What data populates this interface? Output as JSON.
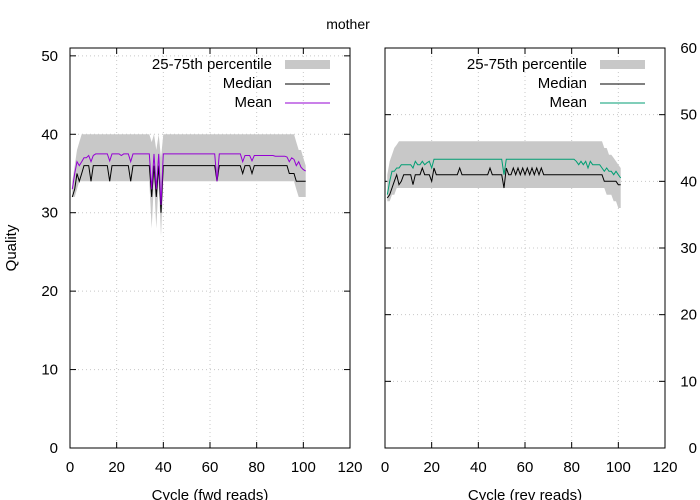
{
  "title": "mother",
  "chart_data": [
    {
      "type": "area",
      "panel": "left",
      "xlabel": "Cycle (fwd reads)",
      "ylabel": "Quality",
      "xlim": [
        0,
        120
      ],
      "ylim": [
        0,
        51
      ],
      "xticks": [
        "0",
        "20",
        "40",
        "60",
        "80",
        "100",
        "120"
      ],
      "yticks": [
        "0",
        "10",
        "20",
        "30",
        "40",
        "50"
      ],
      "grid": true,
      "legend_position": "top-right",
      "legend": [
        {
          "label": "25-75th percentile",
          "color": "#c8c8c8"
        },
        {
          "label": "Median",
          "color": "#000000"
        },
        {
          "label": "Mean",
          "color": "#9400d3"
        }
      ],
      "x": [
        1,
        2,
        3,
        4,
        5,
        6,
        7,
        8,
        9,
        10,
        11,
        12,
        13,
        14,
        15,
        16,
        17,
        18,
        19,
        20,
        21,
        22,
        23,
        24,
        25,
        26,
        27,
        28,
        29,
        30,
        31,
        32,
        33,
        34,
        35,
        36,
        37,
        38,
        39,
        40,
        41,
        42,
        43,
        44,
        45,
        46,
        47,
        48,
        49,
        50,
        51,
        52,
        53,
        54,
        55,
        56,
        57,
        58,
        59,
        60,
        61,
        62,
        63,
        64,
        65,
        66,
        67,
        68,
        69,
        70,
        71,
        72,
        73,
        74,
        75,
        76,
        77,
        78,
        79,
        80,
        81,
        82,
        83,
        84,
        85,
        86,
        87,
        88,
        89,
        90,
        91,
        92,
        93,
        94,
        95,
        96,
        97,
        98,
        99,
        100,
        101
      ],
      "series": [
        {
          "name": "25-75th percentile",
          "kind": "band",
          "low": [
            32,
            32,
            33,
            34,
            34,
            34,
            34,
            34,
            34,
            34,
            34,
            34,
            34,
            34,
            34,
            34,
            34,
            34,
            34,
            34,
            34,
            34,
            34,
            34,
            34,
            34,
            34,
            34,
            34,
            34,
            34,
            34,
            34,
            34,
            28,
            34,
            28,
            34,
            27,
            34,
            34,
            34,
            34,
            34,
            34,
            34,
            34,
            34,
            34,
            34,
            34,
            34,
            34,
            34,
            34,
            34,
            34,
            34,
            34,
            34,
            34,
            34,
            34,
            34,
            34,
            34,
            34,
            34,
            34,
            34,
            34,
            34,
            34,
            34,
            34,
            34,
            34,
            34,
            34,
            34,
            34,
            34,
            34,
            34,
            34,
            34,
            34,
            34,
            34,
            34,
            34,
            34,
            34,
            34,
            34,
            34,
            33,
            32,
            32,
            32,
            32
          ],
          "high": [
            34,
            36,
            38,
            39,
            40,
            40,
            40,
            40,
            40,
            40,
            40,
            40,
            40,
            40,
            40,
            40,
            40,
            40,
            40,
            40,
            40,
            40,
            40,
            40,
            40,
            40,
            40,
            40,
            40,
            40,
            40,
            40,
            40,
            40,
            39,
            40,
            38,
            40,
            37,
            40,
            40,
            40,
            40,
            40,
            40,
            40,
            40,
            40,
            40,
            40,
            40,
            40,
            40,
            40,
            40,
            40,
            40,
            40,
            40,
            40,
            40,
            40,
            40,
            40,
            40,
            40,
            40,
            40,
            40,
            40,
            40,
            40,
            40,
            40,
            40,
            40,
            40,
            40,
            40,
            40,
            40,
            40,
            40,
            40,
            40,
            40,
            40,
            40,
            40,
            40,
            40,
            40,
            40,
            40,
            40,
            40,
            39,
            38,
            38,
            37,
            36
          ]
        },
        {
          "name": "Median",
          "kind": "line",
          "values": [
            32,
            33,
            35,
            34,
            35,
            36,
            36,
            36,
            34,
            36,
            36,
            36,
            36,
            36,
            36,
            36,
            34,
            36,
            36,
            36,
            36,
            36,
            36,
            36,
            36,
            34,
            36,
            36,
            36,
            36,
            36,
            36,
            36,
            36,
            32,
            36,
            32,
            36,
            30,
            36,
            36,
            36,
            36,
            36,
            36,
            36,
            36,
            36,
            36,
            36,
            36,
            36,
            36,
            36,
            36,
            36,
            36,
            36,
            36,
            36,
            36,
            36,
            34,
            36,
            36,
            36,
            36,
            36,
            36,
            36,
            36,
            36,
            36,
            35,
            36,
            36,
            36,
            35,
            36,
            36,
            36,
            36,
            36,
            36,
            36,
            36,
            36,
            36,
            36,
            36,
            36,
            36,
            36,
            35,
            35,
            35,
            34,
            34,
            34,
            34,
            34
          ]
        },
        {
          "name": "Mean",
          "kind": "line",
          "values": [
            33,
            35,
            36.5,
            36,
            36.5,
            37,
            37,
            37.3,
            36.5,
            37.3,
            37.5,
            37.5,
            37.5,
            37.5,
            37.5,
            37.5,
            36.6,
            37.5,
            37.5,
            37.5,
            37.5,
            37.3,
            37.5,
            37.5,
            37.5,
            36.5,
            37.5,
            37.5,
            37.5,
            37.5,
            37.5,
            37.5,
            37.5,
            37.5,
            33,
            37.5,
            33,
            37.5,
            31,
            37.5,
            37.5,
            37.5,
            37.5,
            37.5,
            37.5,
            37.5,
            37.5,
            37.5,
            37.5,
            37.5,
            37.5,
            37.5,
            37.5,
            37.5,
            37.5,
            37.5,
            37.5,
            37.5,
            37.5,
            37.5,
            37.5,
            37.5,
            34,
            37.5,
            37.5,
            37.5,
            37.5,
            37.5,
            37.5,
            37.5,
            37.5,
            37.5,
            37.5,
            36.5,
            37.3,
            37.3,
            37.3,
            36.6,
            37.3,
            37.3,
            37.3,
            37.3,
            37.3,
            37.3,
            37.3,
            37.3,
            37.3,
            37.2,
            37.2,
            37.2,
            37.2,
            37.2,
            37.1,
            36.5,
            37,
            36.8,
            36,
            36.5,
            35.8,
            35.5,
            35.3
          ]
        }
      ]
    },
    {
      "type": "area",
      "panel": "right",
      "xlabel": "Cycle (rev reads)",
      "xlim": [
        0,
        120
      ],
      "ylim": [
        0,
        60
      ],
      "xticks": [
        "0",
        "20",
        "40",
        "60",
        "80",
        "100",
        "120"
      ],
      "yticks": [
        "0",
        "10",
        "20",
        "30",
        "40",
        "50",
        "60"
      ],
      "grid": true,
      "legend_position": "top-right",
      "legend": [
        {
          "label": "25-75th percentile",
          "color": "#c8c8c8"
        },
        {
          "label": "Median",
          "color": "#000000"
        },
        {
          "label": "Mean",
          "color": "#009e73"
        }
      ],
      "x": [
        1,
        2,
        3,
        4,
        5,
        6,
        7,
        8,
        9,
        10,
        11,
        12,
        13,
        14,
        15,
        16,
        17,
        18,
        19,
        20,
        21,
        22,
        23,
        24,
        25,
        26,
        27,
        28,
        29,
        30,
        31,
        32,
        33,
        34,
        35,
        36,
        37,
        38,
        39,
        40,
        41,
        42,
        43,
        44,
        45,
        46,
        47,
        48,
        49,
        50,
        51,
        52,
        53,
        54,
        55,
        56,
        57,
        58,
        59,
        60,
        61,
        62,
        63,
        64,
        65,
        66,
        67,
        68,
        69,
        70,
        71,
        72,
        73,
        74,
        75,
        76,
        77,
        78,
        79,
        80,
        81,
        82,
        83,
        84,
        85,
        86,
        87,
        88,
        89,
        90,
        91,
        92,
        93,
        94,
        95,
        96,
        97,
        98,
        99,
        100,
        101
      ],
      "series": [
        {
          "name": "25-75th percentile",
          "kind": "band",
          "low": [
            37,
            37,
            38,
            38,
            39,
            39,
            39,
            39,
            39,
            39,
            39,
            39,
            39,
            39,
            39,
            39,
            39,
            39,
            39,
            39,
            39,
            39,
            39,
            39,
            39,
            39,
            39,
            39,
            39,
            39,
            39,
            39,
            39,
            39,
            39,
            39,
            39,
            39,
            39,
            39,
            39,
            39,
            39,
            39,
            39,
            39,
            39,
            39,
            39,
            39,
            39,
            39,
            39,
            39,
            39,
            39,
            39,
            39,
            39,
            39,
            39,
            39,
            39,
            39,
            39,
            39,
            39,
            39,
            39,
            39,
            39,
            39,
            39,
            39,
            39,
            39,
            39,
            39,
            39,
            39,
            39,
            39,
            39,
            39,
            39,
            39,
            39,
            39,
            39,
            39,
            39,
            39,
            39,
            39,
            38,
            38,
            38,
            37,
            37,
            36,
            36
          ],
          "high": [
            41,
            43,
            44,
            45,
            45.5,
            46,
            46,
            46,
            46,
            46,
            46,
            46,
            46,
            46,
            46,
            46,
            46,
            46,
            46,
            46,
            46,
            46,
            46,
            46,
            46,
            46,
            46,
            46,
            46,
            46,
            46,
            46,
            46,
            46,
            46,
            46,
            46,
            46,
            46,
            46,
            46,
            46,
            46,
            46,
            46,
            46,
            46,
            46,
            46,
            46,
            46,
            46,
            46,
            46,
            46,
            46,
            46,
            46,
            46,
            46,
            46,
            46,
            46,
            46,
            46,
            46,
            46,
            46,
            46,
            46,
            46,
            46,
            46,
            46,
            46,
            46,
            46,
            46,
            46,
            46,
            46,
            46,
            46,
            46,
            46,
            46,
            46,
            46,
            46,
            46,
            46,
            46,
            46,
            45,
            45,
            44,
            44,
            43.5,
            43,
            42.5,
            42
          ]
        },
        {
          "name": "Median",
          "kind": "line",
          "values": [
            37.5,
            38,
            39,
            40,
            41,
            39.5,
            40,
            41,
            41,
            41,
            41,
            39.5,
            41,
            41,
            41,
            42,
            41,
            41,
            41,
            40,
            42,
            41,
            41,
            41,
            41,
            41,
            41,
            41,
            41,
            41,
            41,
            42,
            41,
            41,
            41,
            41,
            41,
            41,
            41,
            41,
            41,
            41,
            41,
            41,
            42,
            41,
            41,
            41,
            41,
            41,
            39,
            42,
            41,
            41,
            42,
            41,
            42,
            41,
            42,
            41,
            42,
            41,
            42,
            41,
            42,
            41,
            42,
            41,
            41,
            41,
            41,
            41,
            41,
            41,
            41,
            41,
            41,
            41,
            41,
            41,
            41,
            41,
            41,
            41,
            41,
            41,
            41,
            41,
            41,
            41,
            41,
            41,
            41,
            40,
            40,
            40,
            40,
            40,
            40,
            39.5,
            39.5
          ]
        },
        {
          "name": "Mean",
          "kind": "line",
          "values": [
            38,
            40,
            41.5,
            41.5,
            42,
            42,
            42.5,
            42.5,
            42.5,
            42.5,
            42.5,
            42,
            43,
            42.5,
            42.5,
            43,
            42.5,
            42.8,
            43,
            42,
            43.3,
            43.3,
            43.3,
            43.3,
            43.3,
            43.3,
            43.3,
            43.3,
            43.3,
            43.3,
            43.3,
            43.3,
            43.3,
            43.3,
            43.3,
            43.3,
            43.3,
            43.3,
            43.3,
            43.3,
            43.3,
            43.3,
            43.3,
            43.3,
            43.3,
            43.3,
            43.3,
            43.3,
            43.3,
            43.3,
            41,
            43.3,
            43.3,
            43.3,
            43.3,
            43.3,
            43.3,
            43.3,
            43.3,
            43.3,
            43.3,
            43.3,
            43.3,
            43.3,
            43.3,
            43.3,
            43.3,
            43.3,
            43.3,
            43.3,
            43.3,
            43.3,
            43.3,
            43.3,
            43.3,
            43.3,
            43.3,
            43.3,
            43.3,
            43.3,
            43.3,
            43,
            42.5,
            43,
            42.5,
            43,
            42,
            43,
            42.5,
            42.5,
            42.5,
            42.5,
            42,
            41.5,
            42,
            41.5,
            41.5,
            41,
            41.5,
            41,
            40.5
          ]
        }
      ]
    }
  ]
}
